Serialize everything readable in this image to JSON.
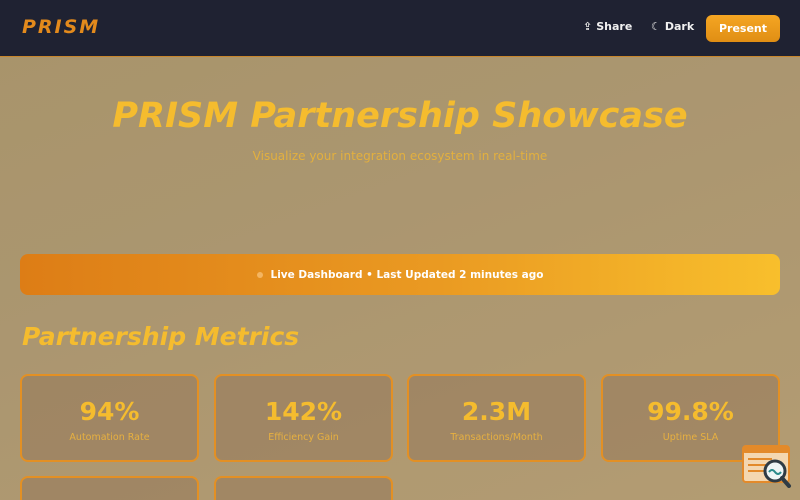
{
  "app": {
    "logo": "PRISM",
    "nav": {
      "share_label": "Share",
      "share_icon": "share-icon",
      "dark_label": "Dark",
      "dark_icon": "moon-icon",
      "present_label": "Present"
    }
  },
  "hero": {
    "title": "PRISM Partnership Showcase",
    "subtitle": "Visualize your integration ecosystem in real-time"
  },
  "banner": {
    "text": "Live Dashboard • Last Updated 2 minutes ago"
  },
  "metrics": {
    "title": "Partnership Metrics",
    "cards": [
      {
        "value": "94%",
        "label": "Automation Rate"
      },
      {
        "value": "142%",
        "label": "Efficiency Gain"
      },
      {
        "value": "2.3M",
        "label": "Transactions/Month"
      },
      {
        "value": "99.8%",
        "label": "Uptime SLA"
      }
    ]
  },
  "colors": {
    "topbar": "#1f2232",
    "accent": "#f5a623",
    "title": "#f5bc2e"
  }
}
